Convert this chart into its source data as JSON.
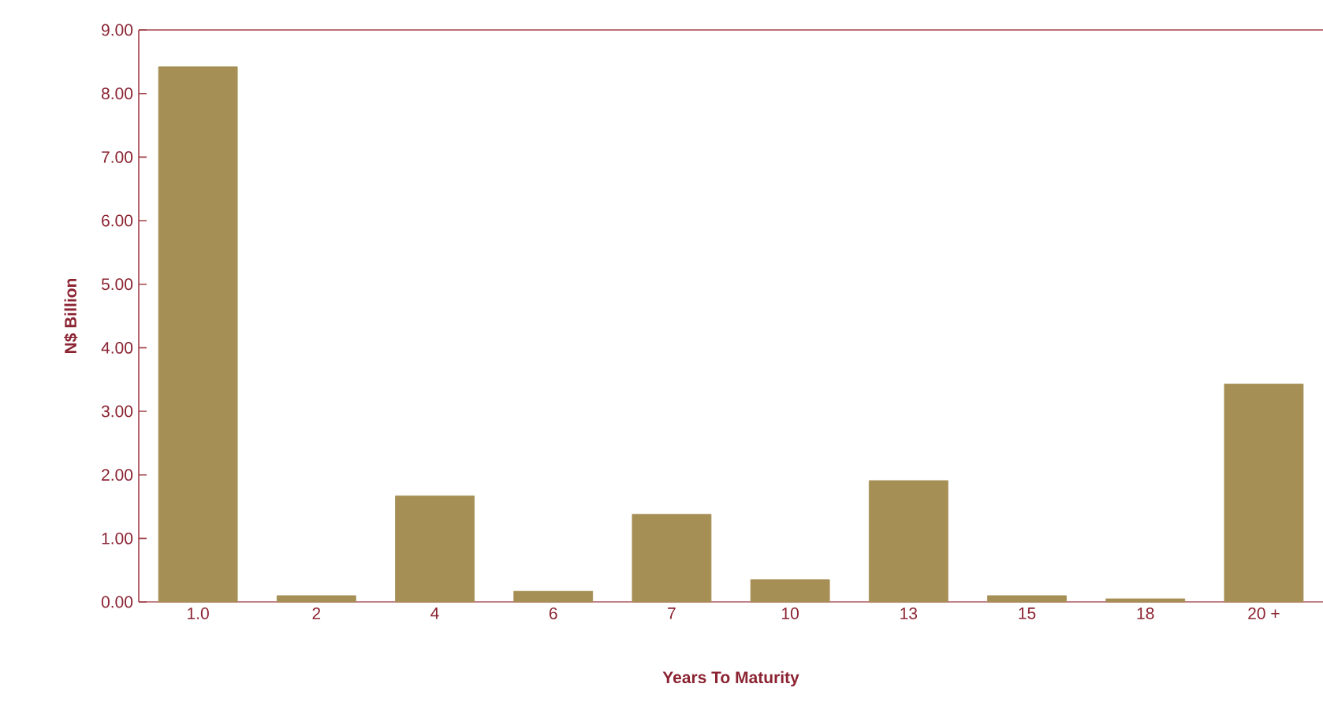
{
  "chart_data": {
    "type": "bar",
    "xlabel": "Years To Maturity",
    "ylabel": "N$ Billion",
    "categories": [
      "1.0",
      "2",
      "4",
      "6",
      "7",
      "10",
      "13",
      "15",
      "18",
      "20 +"
    ],
    "values": [
      8.42,
      0.1,
      1.67,
      0.17,
      1.38,
      0.35,
      1.91,
      0.1,
      0.05,
      3.43
    ],
    "color": "#a68f55",
    "ylim": [
      0,
      9
    ],
    "yticks": [
      {
        "value": 0,
        "label": "0.00"
      },
      {
        "value": 1,
        "label": "1.00"
      },
      {
        "value": 2,
        "label": "2.00"
      },
      {
        "value": 3,
        "label": "3.00"
      },
      {
        "value": 4,
        "label": "4.00"
      },
      {
        "value": 5,
        "label": "5.00"
      },
      {
        "value": 6,
        "label": "6.00"
      },
      {
        "value": 7,
        "label": "7.00"
      },
      {
        "value": 8,
        "label": "8.00"
      },
      {
        "value": 9,
        "label": "9.00"
      }
    ],
    "grid": false
  }
}
